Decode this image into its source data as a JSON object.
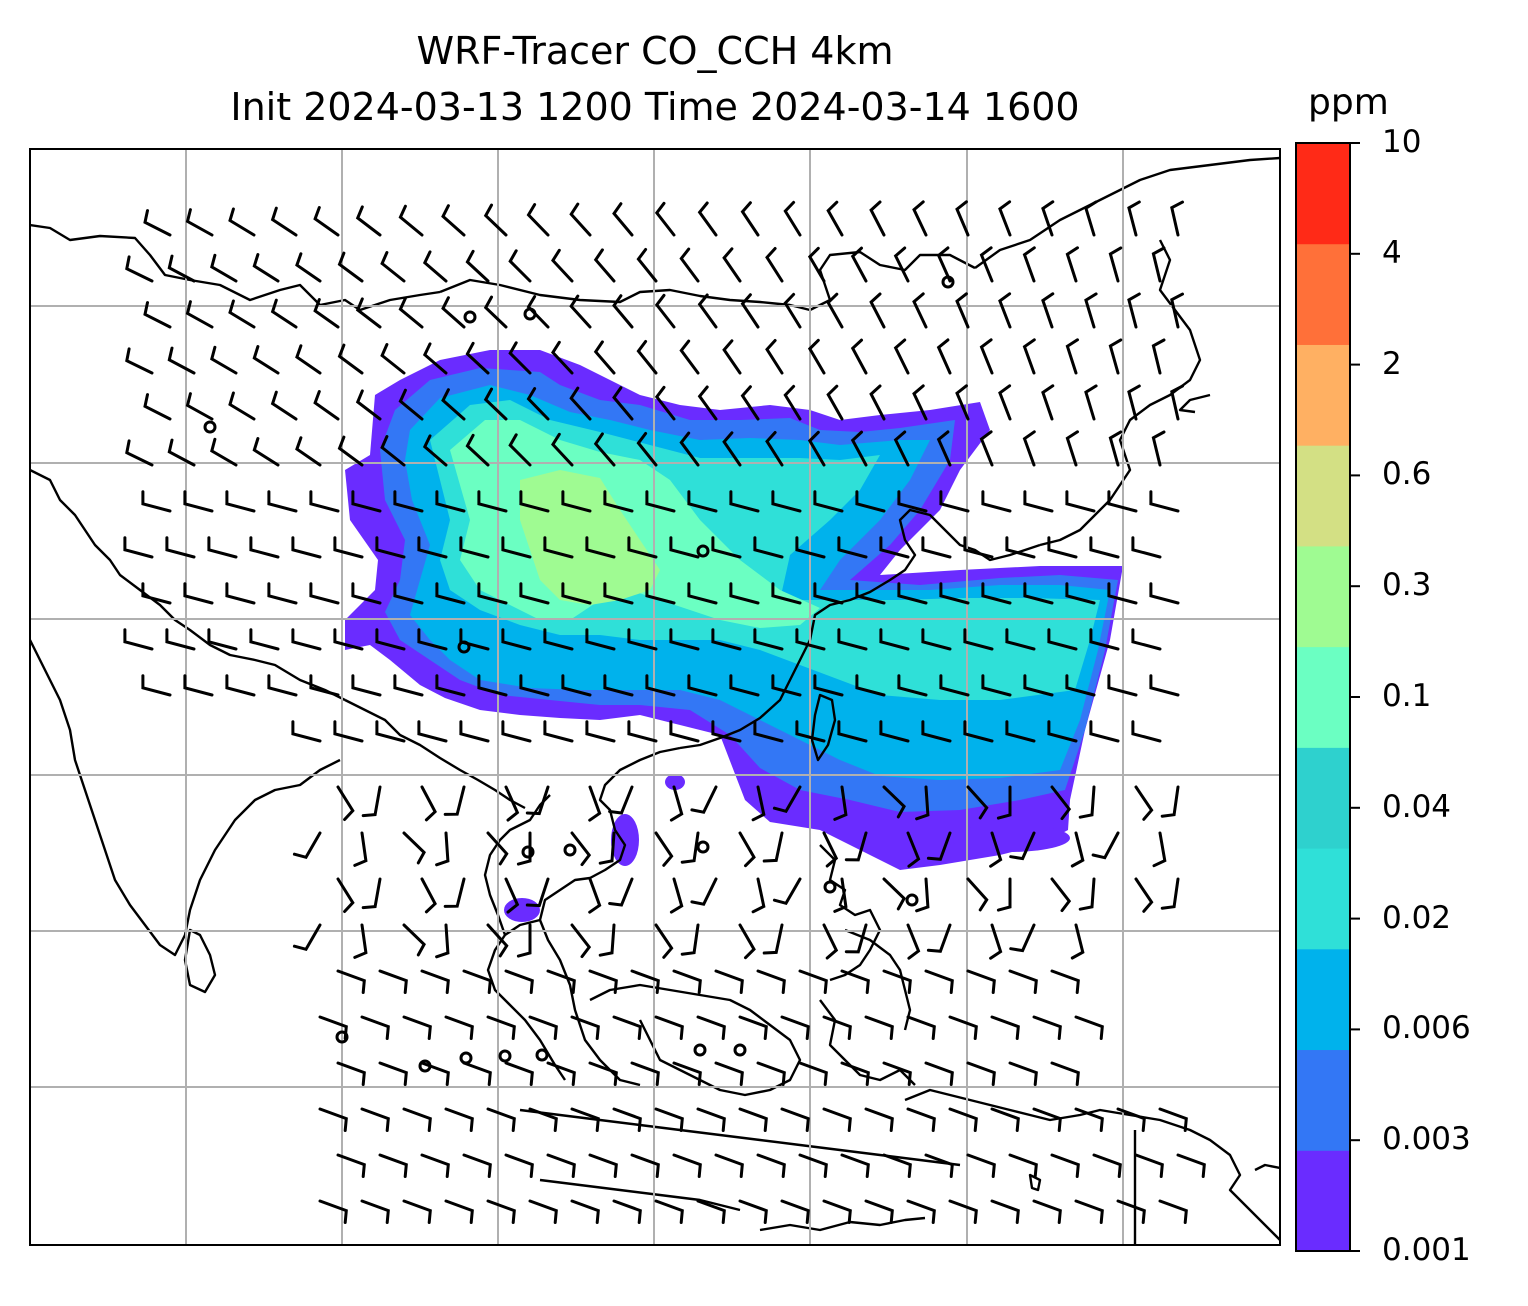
{
  "title": {
    "line1": "WRF-Tracer CO_CCH 4km",
    "line2": "Init 2024-03-13 1200 Time 2024-03-14 1600"
  },
  "colorbar": {
    "unit": "ppm",
    "levels": [
      "0.001",
      "0.003",
      "0.006",
      "0.02",
      "0.02",
      "0.04",
      "0.1",
      "0.3",
      "0.6",
      "2",
      "4",
      "10"
    ],
    "tick_labels": [
      "0.001",
      "0.003",
      "0.006",
      "0.02",
      "0.04",
      "0.1",
      "0.3",
      "0.6",
      "2",
      "4",
      "10"
    ],
    "colors": [
      "#6a2cff",
      "#3377f5",
      "#00b2ec",
      "#2fe0d8",
      "#2ed1ce",
      "#6bffc2",
      "#9ffb92",
      "#d3e084",
      "#ffb062",
      "#ff7039",
      "#ff2a17"
    ]
  },
  "map": {
    "projection": "lat-lon",
    "grid": true,
    "field_colors": {
      "lvl1": "#6a2cff",
      "lvl2": "#3377f5",
      "lvl3": "#00b2ec",
      "lvl4": "#2fe0d8",
      "lvl5": "#6bffc2",
      "lvl6": "#9ffb92"
    },
    "overlay": "wind-barbs"
  }
}
